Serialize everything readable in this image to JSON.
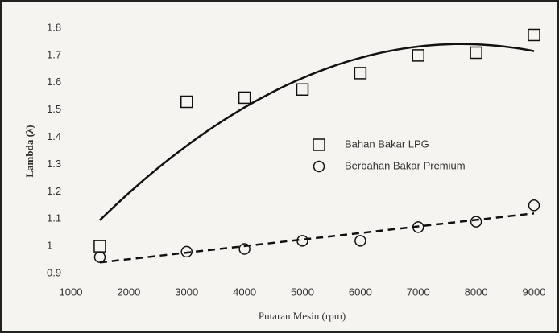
{
  "chart_data": {
    "type": "scatter",
    "x_label": "Putaran Mesin (rpm)",
    "y_label": "Lambda (λ)",
    "xlim": [
      1000,
      9000
    ],
    "xticks": [
      1000,
      2000,
      3000,
      4000,
      5000,
      6000,
      7000,
      8000,
      9000
    ],
    "ylim": [
      0.9,
      1.8
    ],
    "yticks": [
      0.9,
      1,
      1.1,
      1.2,
      1.3,
      1.4,
      1.5,
      1.6,
      1.7,
      1.8
    ],
    "grid": false,
    "series": [
      {
        "name": "Bahan Bakar LPG",
        "marker": "square",
        "trendline": "poly2",
        "color": "#111111",
        "x": [
          1500,
          3000,
          4000,
          5000,
          6000,
          7000,
          8000,
          9000
        ],
        "values": [
          1.0,
          1.53,
          1.545,
          1.575,
          1.635,
          1.7,
          1.71,
          1.775
        ]
      },
      {
        "name": "Berbahan Bakar Premium",
        "marker": "circle",
        "trendline": "linear",
        "color": "#111111",
        "x": [
          1500,
          3000,
          4000,
          5000,
          6000,
          7000,
          8000,
          9000
        ],
        "values": [
          0.96,
          0.98,
          0.99,
          1.02,
          1.02,
          1.07,
          1.09,
          1.15
        ]
      }
    ]
  }
}
